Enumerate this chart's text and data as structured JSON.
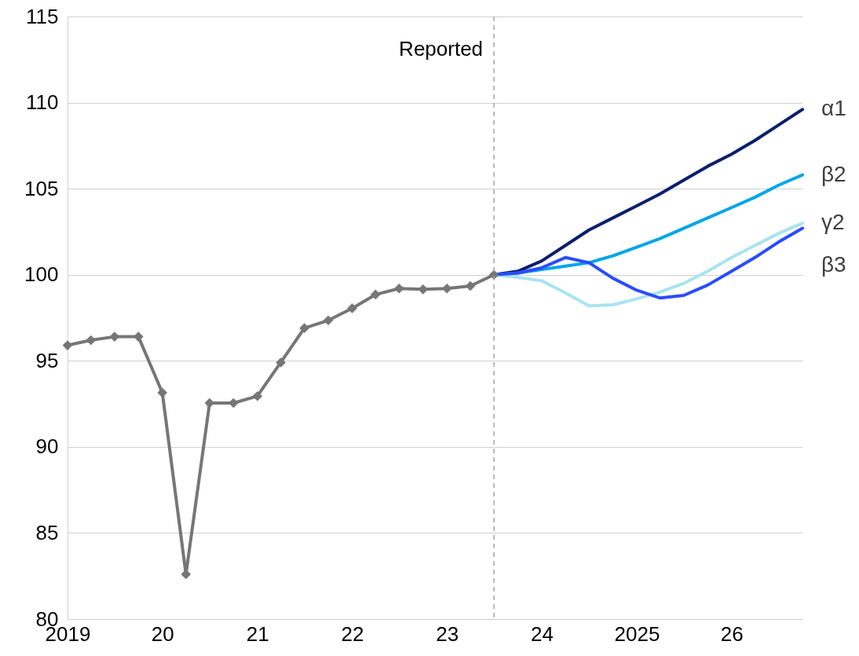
{
  "chart_data": {
    "type": "line",
    "x": [
      "2019-01",
      "2019-04",
      "2019-07",
      "2019-10",
      "2020-01",
      "2020-04",
      "2020-07",
      "2020-10",
      "2021-01",
      "2021-04",
      "2021-07",
      "2021-10",
      "2022-01",
      "2022-04",
      "2022-07",
      "2022-10",
      "2023-01",
      "2023-04",
      "2023-07",
      "2023-10",
      "2024-01",
      "2024-04",
      "2024-07",
      "2024-10",
      "2025-01",
      "2025-04",
      "2025-07",
      "2025-10",
      "2026-01",
      "2026-04",
      "2026-07",
      "2026-10"
    ],
    "series": [
      {
        "color": "#767676",
        "marker": "diamond",
        "values": [
          95.9,
          96.2,
          96.4,
          96.4,
          93.15,
          82.6,
          92.55,
          92.55,
          92.95,
          94.9,
          96.9,
          97.35,
          98.05,
          98.85,
          99.2,
          99.15,
          99.2,
          99.35,
          100,
          null,
          null,
          null,
          null,
          null,
          null,
          null,
          null,
          null,
          null,
          null,
          null,
          null
        ]
      },
      {
        "name": "α1",
        "color": "#0b1f6b",
        "values": [
          null,
          null,
          null,
          null,
          null,
          null,
          null,
          null,
          null,
          null,
          null,
          null,
          null,
          null,
          null,
          null,
          null,
          null,
          100,
          100.2,
          100.8,
          101.7,
          102.6,
          103.3,
          104.0,
          104.7,
          105.5,
          106.3,
          107.0,
          107.8,
          108.7,
          109.6
        ]
      },
      {
        "name": "β2",
        "color": "#00a6e6",
        "values": [
          null,
          null,
          null,
          null,
          null,
          null,
          null,
          null,
          null,
          null,
          null,
          null,
          null,
          null,
          null,
          null,
          null,
          null,
          100,
          100.1,
          100.3,
          100.5,
          100.7,
          101.1,
          101.6,
          102.1,
          102.7,
          103.3,
          103.9,
          104.5,
          105.2,
          105.8
        ]
      },
      {
        "name": "γ2",
        "color": "#a8e4ee",
        "values": [
          null,
          null,
          null,
          null,
          null,
          null,
          null,
          null,
          null,
          null,
          null,
          null,
          null,
          null,
          null,
          null,
          null,
          null,
          100,
          99.85,
          99.65,
          98.95,
          98.2,
          98.25,
          98.6,
          99.0,
          99.5,
          100.2,
          101.0,
          101.7,
          102.4,
          103.0
        ]
      },
      {
        "name": "β3",
        "color": "#2a4cff",
        "values": [
          null,
          null,
          null,
          null,
          null,
          null,
          null,
          null,
          null,
          null,
          null,
          null,
          null,
          null,
          null,
          null,
          null,
          null,
          100,
          100.1,
          100.4,
          101.0,
          100.7,
          99.8,
          99.1,
          98.65,
          98.8,
          99.4,
          100.2,
          101.0,
          101.9,
          102.7
        ]
      }
    ],
    "xlim": [
      "2019-01",
      "2026-10"
    ],
    "xticks": [
      {
        "value": "2019-01",
        "label": "2019"
      },
      {
        "value": "2020-01",
        "label": "20"
      },
      {
        "value": "2021-01",
        "label": "21"
      },
      {
        "value": "2022-01",
        "label": "22"
      },
      {
        "value": "2023-01",
        "label": "23"
      },
      {
        "value": "2024-01",
        "label": "24"
      },
      {
        "value": "2025-01",
        "label": "2025"
      },
      {
        "value": "2026-01",
        "label": "26"
      }
    ],
    "ylim": [
      80,
      115
    ],
    "yticks": [
      80,
      85,
      90,
      95,
      100,
      105,
      110,
      115
    ],
    "grid": "y",
    "line_style": "solid",
    "ref_lines": [
      {
        "axis": "x",
        "value": "2023-07",
        "label": "Reported",
        "color": "#a6a6a6",
        "line_style": "dashed"
      }
    ]
  }
}
